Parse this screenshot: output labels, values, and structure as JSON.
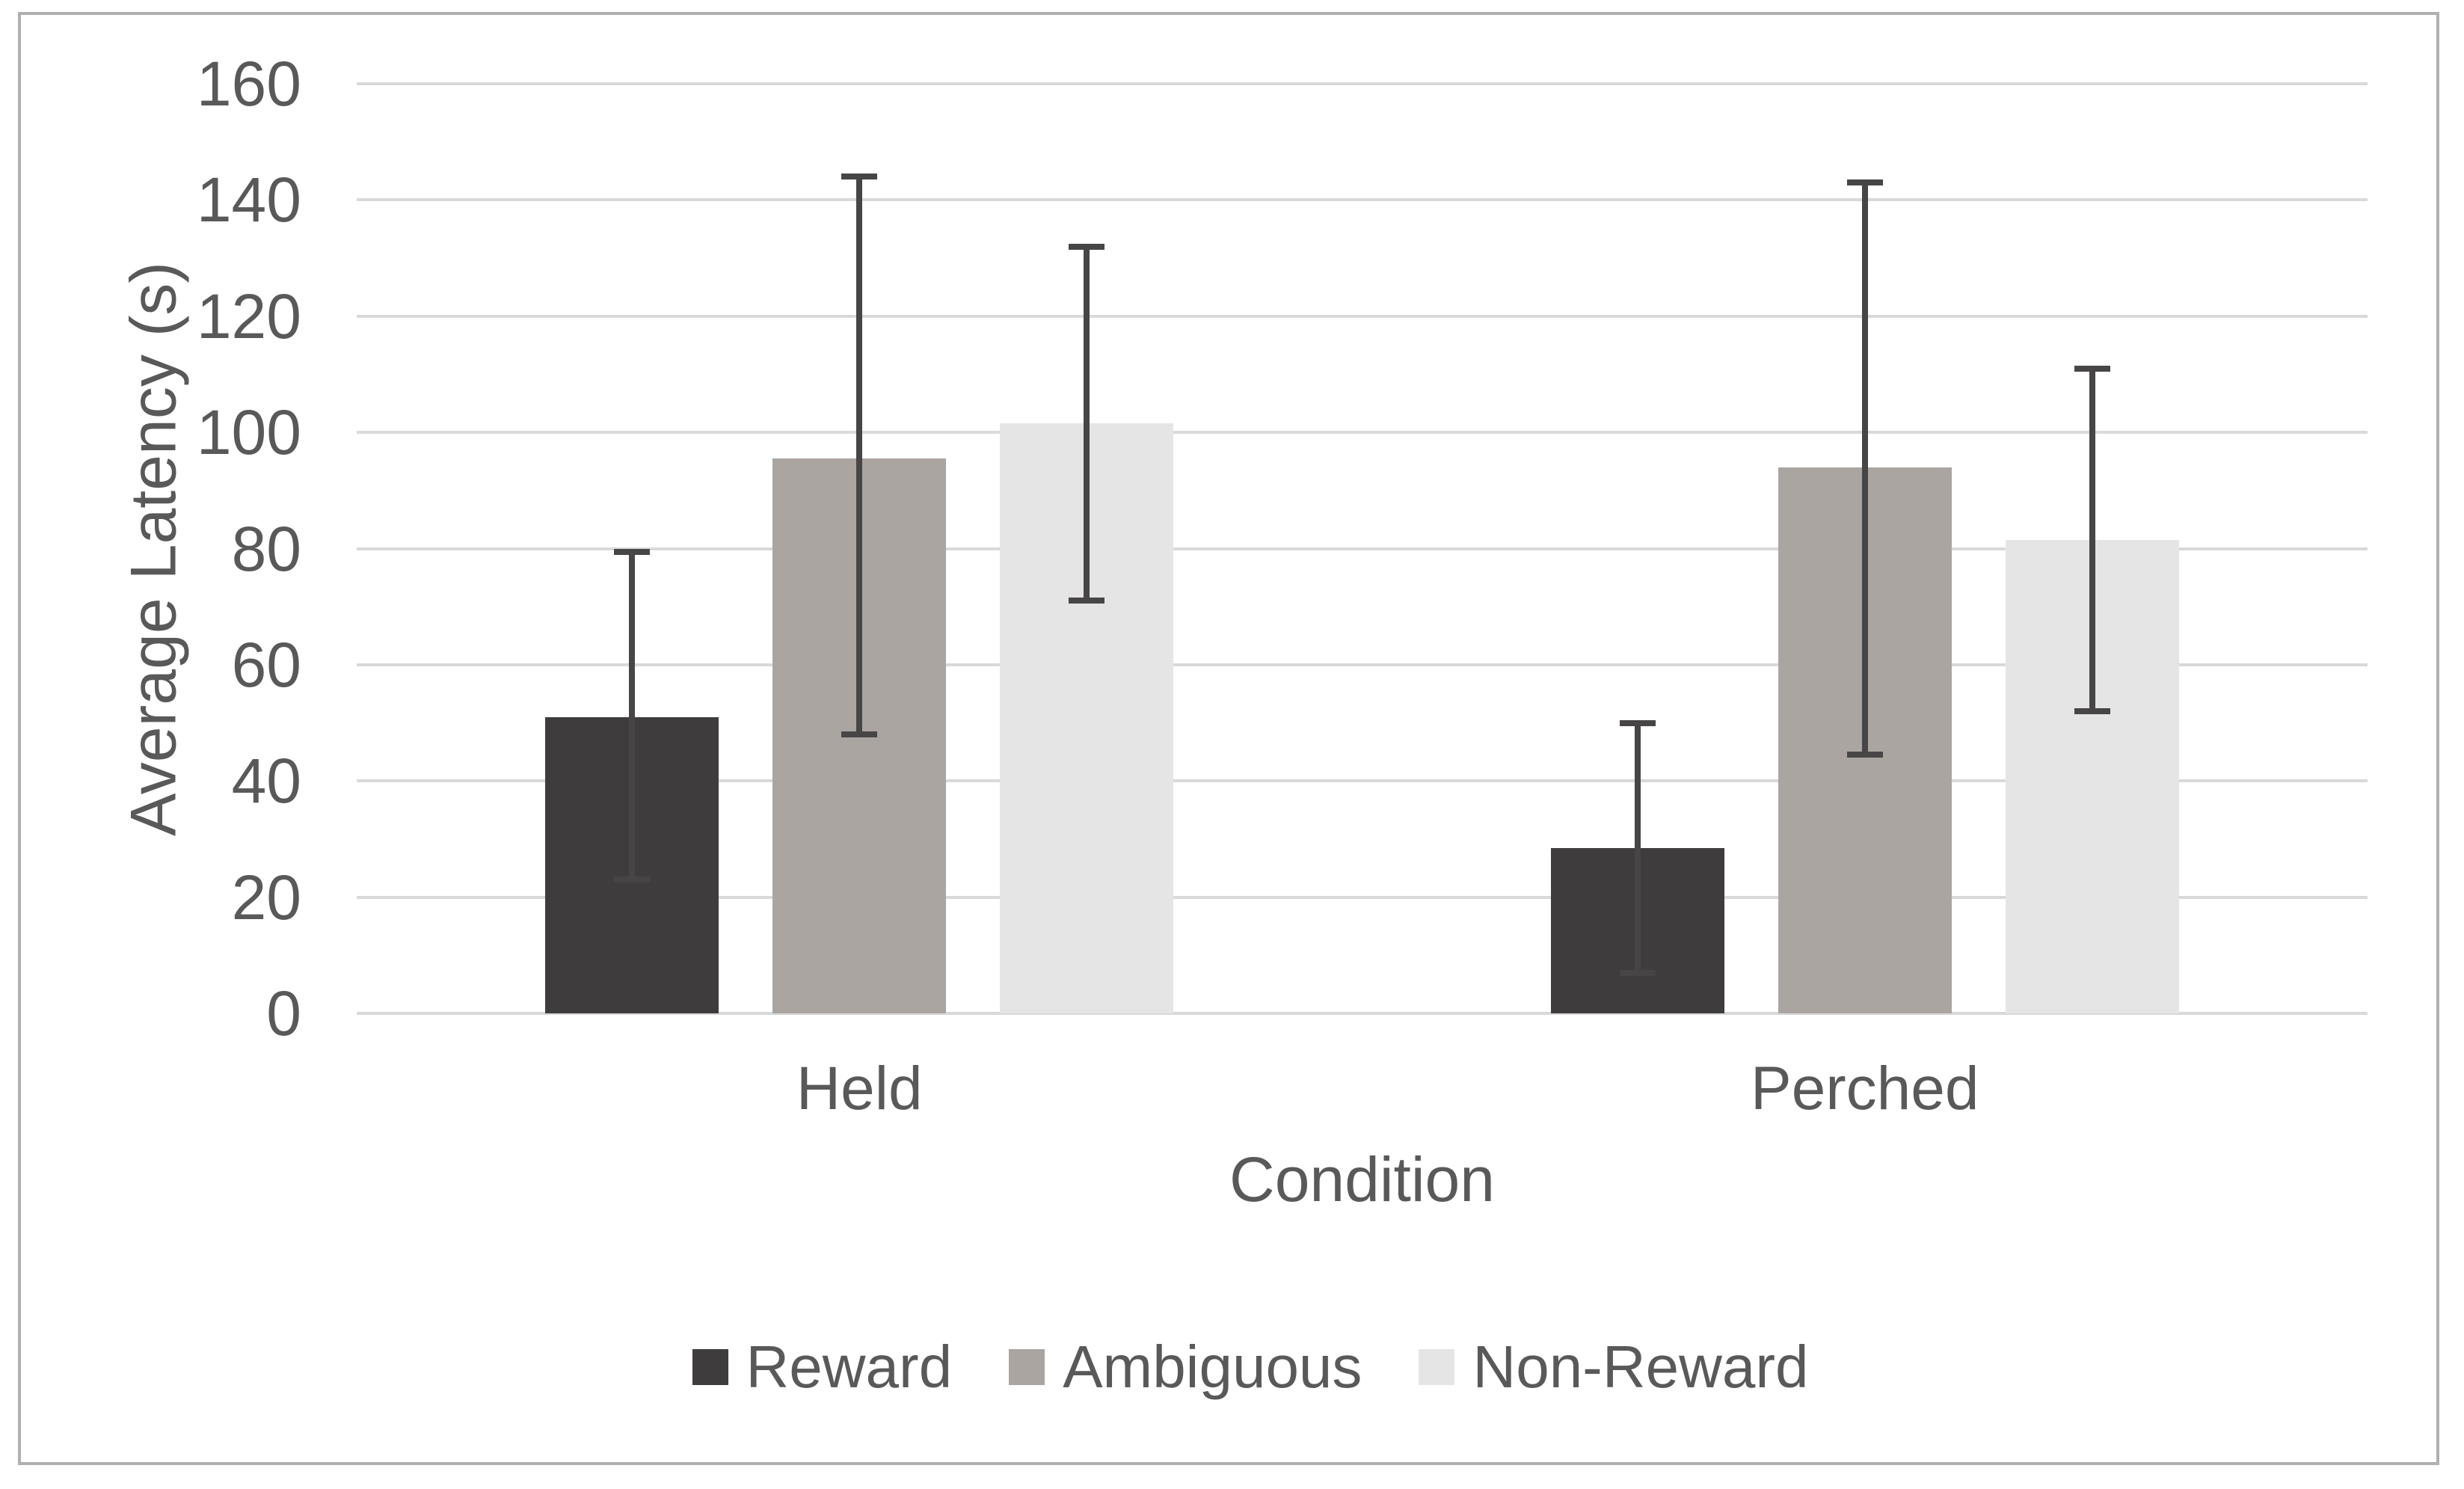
{
  "chart_data": {
    "type": "bar",
    "title": "",
    "categories": [
      "Held",
      "Perched"
    ],
    "series": [
      {
        "name": "Reward",
        "color": "#3f3c3d",
        "values": [
          51,
          28.5
        ],
        "error_low": [
          22.5,
          6.5
        ],
        "error_high": [
          80,
          50.5
        ]
      },
      {
        "name": "Ambiguous",
        "color": "#aba5a2",
        "values": [
          95.5,
          94
        ],
        "error_low": [
          47.5,
          44
        ],
        "error_high": [
          144.5,
          143.5
        ]
      },
      {
        "name": "Non-Reward",
        "color": "#e6e5e5",
        "values": [
          101.5,
          81.5
        ],
        "error_low": [
          70.5,
          51.5
        ],
        "error_high": [
          132.5,
          111.5
        ]
      }
    ],
    "xlabel": "Condition",
    "ylabel": "Average Latency (s)",
    "ylim": [
      0,
      160
    ],
    "yticks": [
      0,
      20,
      40,
      60,
      80,
      100,
      120,
      140,
      160
    ],
    "grid": true,
    "legend_position": "bottom"
  },
  "style": {
    "gridline_color": "#d9d9d9",
    "error_bar_color": "#474546",
    "text_color": "#595959",
    "frame_border_color": "#b0b0b0",
    "background_color": "#ffffff"
  }
}
